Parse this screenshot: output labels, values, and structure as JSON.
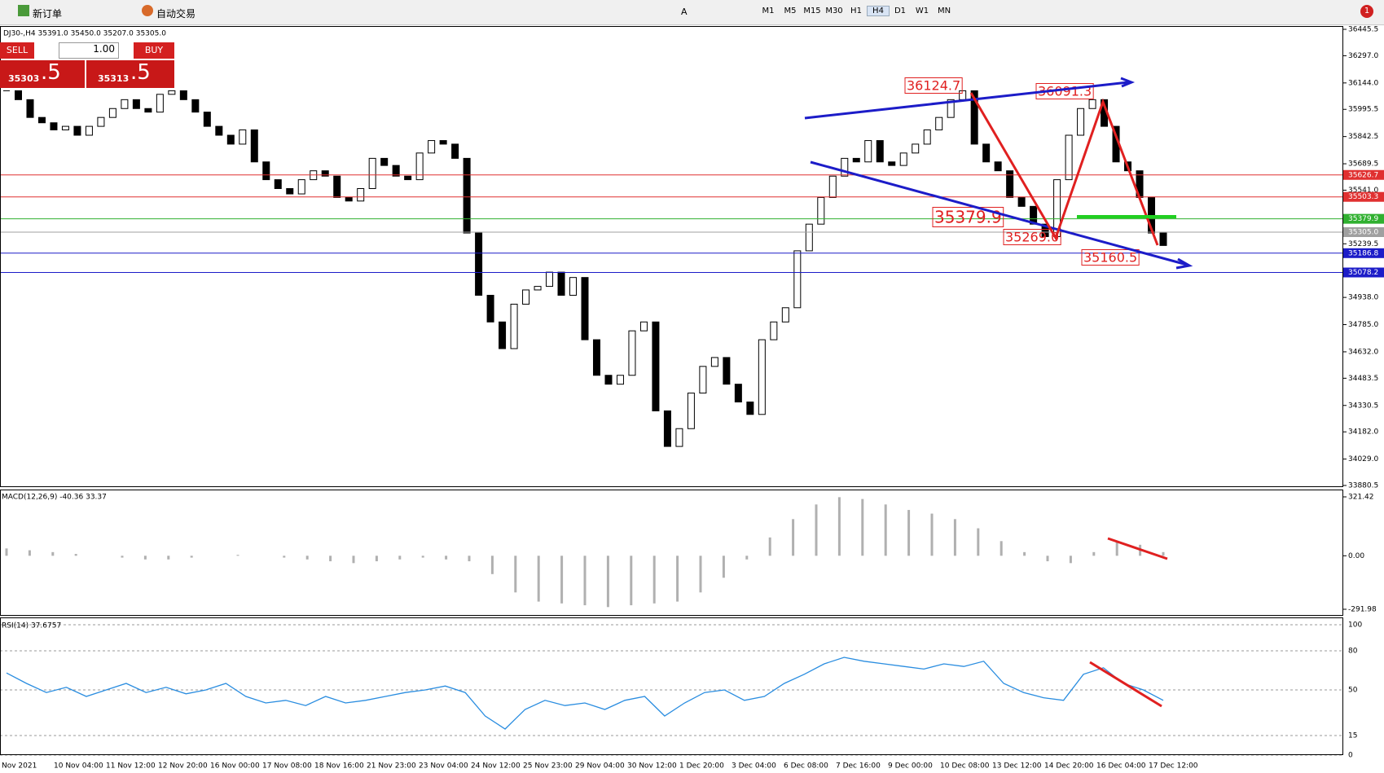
{
  "toolbar": {
    "new_order": "新订单",
    "auto_trade": "自动交易",
    "text_tool": "A",
    "timeframes": [
      "M1",
      "M5",
      "M15",
      "M30",
      "H1",
      "H4",
      "D1",
      "W1",
      "MN"
    ],
    "active_timeframe": 5,
    "notifications": "1"
  },
  "symbol_info": "DJ30-,H4 35391.0 35450.0 35207.0 35305.0",
  "trade_panel": {
    "sell": "SELL",
    "buy": "BUY",
    "volume": "1.00",
    "bid_main": "35303",
    "bid_frac": ".5",
    "ask_main": "35313",
    "ask_frac": ".5"
  },
  "main_chart": {
    "type": "candlestick",
    "ylim": [
      33880.5,
      36445.5
    ],
    "yticks": [
      {
        "value": 36445.5,
        "label": "36445.5"
      },
      {
        "value": 36297,
        "label": "36297.0"
      },
      {
        "value": 36144,
        "label": "36144.0"
      },
      {
        "value": 35995.5,
        "label": "35995.5"
      },
      {
        "value": 35842.5,
        "label": "35842.5"
      },
      {
        "value": 35689.5,
        "label": "35689.5"
      },
      {
        "value": 35541,
        "label": "35541.0"
      },
      {
        "value": 35239.5,
        "label": "35239.5"
      },
      {
        "value": 34938,
        "label": "34938.0"
      },
      {
        "value": 34785,
        "label": "34785.0"
      },
      {
        "value": 34632,
        "label": "34632.0"
      },
      {
        "value": 34483.5,
        "label": "34483.5"
      },
      {
        "value": 34330.5,
        "label": "34330.5"
      },
      {
        "value": 34182,
        "label": "34182.0"
      },
      {
        "value": 34029,
        "label": "34029.0"
      },
      {
        "value": 33880.5,
        "label": "33880.5"
      }
    ],
    "closes": [
      36100,
      36050,
      35950,
      35920,
      35880,
      35900,
      35850,
      35900,
      35950,
      36000,
      36050,
      36000,
      35980,
      36080,
      36100,
      36050,
      35980,
      35900,
      35850,
      35800,
      35880,
      35700,
      35600,
      35550,
      35520,
      35600,
      35650,
      35620,
      35500,
      35480,
      35550,
      35720,
      35680,
      35620,
      35600,
      35750,
      35820,
      35800,
      35720,
      35300,
      34950,
      34800,
      34650,
      34900,
      34980,
      35000,
      35080,
      34950,
      35050,
      34700,
      34500,
      34450,
      34500,
      34750,
      34800,
      34300,
      34100,
      34200,
      34400,
      34550,
      34600,
      34450,
      34350,
      34280,
      34700,
      34800,
      34880,
      35200,
      35350,
      35500,
      35620,
      35720,
      35700,
      35820,
      35700,
      35680,
      35750,
      35800,
      35880,
      35950,
      36050,
      36100,
      35800,
      35700,
      35650,
      35500,
      35450,
      35350,
      35280,
      35600,
      35850,
      36000,
      36050,
      35900,
      35700,
      35650,
      35500,
      35300,
      35230
    ],
    "levels": [
      {
        "value": 35626.7,
        "color": "#e03030"
      },
      {
        "value": 35503.3,
        "color": "#e03030"
      },
      {
        "value": 35379.9,
        "color": "#30b030"
      },
      {
        "value": 35305,
        "label": "35305.0",
        "color": "#a0a0a0"
      },
      {
        "value": 35186.8,
        "color": "#1c1cc8"
      },
      {
        "value": 35078.2,
        "color": "#1c1cc8"
      }
    ],
    "annotations": [
      "36124.7",
      "36091.3",
      "35379.9",
      "35269.0",
      "35160.5"
    ]
  },
  "macd": {
    "label": "MACD(12,26,9) -40.36 33.37",
    "ylim": [
      -291.98,
      321.42
    ],
    "yticks": [
      {
        "value": 321.42,
        "label": "321.42"
      },
      {
        "value": 0,
        "label": "0.00"
      },
      {
        "value": -291.98,
        "label": "-291.98"
      }
    ],
    "values": [
      40,
      30,
      20,
      10,
      0,
      -10,
      -20,
      -20,
      -10,
      0,
      5,
      0,
      -10,
      -20,
      -30,
      -40,
      -30,
      -20,
      -10,
      -20,
      -30,
      -100,
      -200,
      -250,
      -260,
      -270,
      -280,
      -270,
      -260,
      -250,
      -200,
      -120,
      -20,
      100,
      200,
      280,
      320,
      310,
      280,
      250,
      230,
      200,
      150,
      80,
      20,
      -30,
      -40,
      20,
      80,
      60,
      20
    ]
  },
  "rsi": {
    "label": "RSI(14) 37.6757",
    "ylim": [
      0,
      100
    ],
    "yticks": [
      100,
      80,
      50,
      15,
      0
    ],
    "values": [
      63,
      55,
      48,
      52,
      45,
      50,
      55,
      48,
      52,
      47,
      50,
      55,
      45,
      40,
      42,
      38,
      45,
      40,
      42,
      45,
      48,
      50,
      53,
      48,
      30,
      20,
      35,
      42,
      38,
      40,
      35,
      42,
      45,
      30,
      40,
      48,
      50,
      42,
      45,
      55,
      62,
      70,
      75,
      72,
      70,
      68,
      66,
      70,
      68,
      72,
      55,
      48,
      44,
      42,
      62,
      67,
      55,
      50,
      42
    ]
  },
  "time_axis": [
    "Nov 2021",
    "10 Nov 04:00",
    "11 Nov 12:00",
    "12 Nov 20:00",
    "16 Nov 00:00",
    "17 Nov 08:00",
    "18 Nov 16:00",
    "21 Nov 23:00",
    "23 Nov 04:00",
    "24 Nov 12:00",
    "25 Nov 23:00",
    "29 Nov 04:00",
    "30 Nov 12:00",
    "1 Dec 20:00",
    "3 Dec 04:00",
    "6 Dec 08:00",
    "7 Dec 16:00",
    "9 Dec 00:00",
    "10 Dec 08:00",
    "13 Dec 12:00",
    "14 Dec 20:00",
    "16 Dec 04:00",
    "17 Dec 12:00"
  ]
}
